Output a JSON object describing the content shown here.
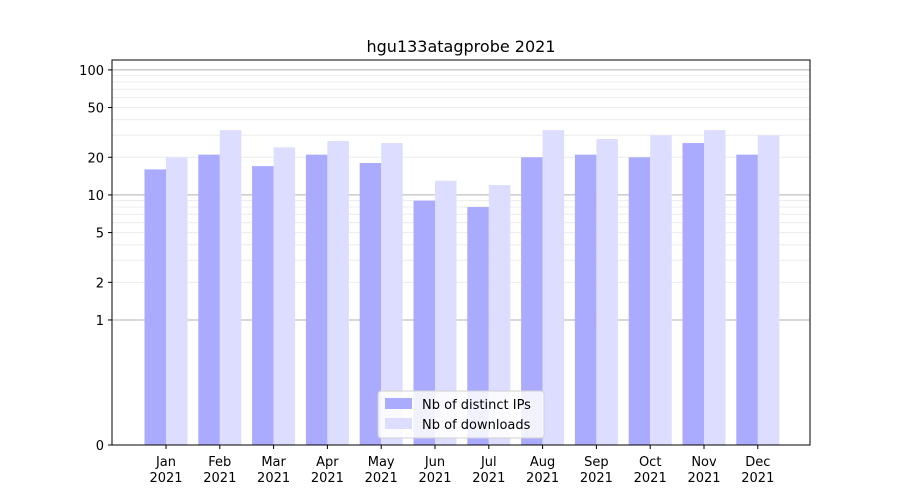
{
  "chart_data": {
    "type": "bar",
    "title": "hgu133atagprobe 2021",
    "xlabel": "",
    "ylabel": "",
    "yscale": "symlog",
    "ylim": [
      0,
      120
    ],
    "yticks": [
      0,
      1,
      2,
      5,
      10,
      20,
      50,
      100
    ],
    "ytick_labels": [
      "0",
      "1",
      "2",
      "5",
      "10",
      "20",
      "50",
      "100"
    ],
    "categories": [
      "Jan\n2021",
      "Feb\n2021",
      "Mar\n2021",
      "Apr\n2021",
      "May\n2021",
      "Jun\n2021",
      "Jul\n2021",
      "Aug\n2021",
      "Sep\n2021",
      "Oct\n2021",
      "Nov\n2021",
      "Dec\n2021"
    ],
    "category_lines": [
      [
        "Jan",
        "2021"
      ],
      [
        "Feb",
        "2021"
      ],
      [
        "Mar",
        "2021"
      ],
      [
        "Apr",
        "2021"
      ],
      [
        "May",
        "2021"
      ],
      [
        "Jun",
        "2021"
      ],
      [
        "Jul",
        "2021"
      ],
      [
        "Aug",
        "2021"
      ],
      [
        "Sep",
        "2021"
      ],
      [
        "Oct",
        "2021"
      ],
      [
        "Nov",
        "2021"
      ],
      [
        "Dec",
        "2021"
      ]
    ],
    "series": [
      {
        "name": "Nb of distinct IPs",
        "color": "#aaaaff",
        "values": [
          16,
          21,
          17,
          21,
          18,
          9,
          8,
          20,
          21,
          20,
          26,
          21
        ]
      },
      {
        "name": "Nb of downloads",
        "color": "#ddddff",
        "values": [
          20,
          33,
          24,
          27,
          26,
          13,
          12,
          33,
          28,
          30,
          33,
          30
        ]
      }
    ],
    "legend": {
      "position": "lower-center"
    },
    "grid": true
  }
}
